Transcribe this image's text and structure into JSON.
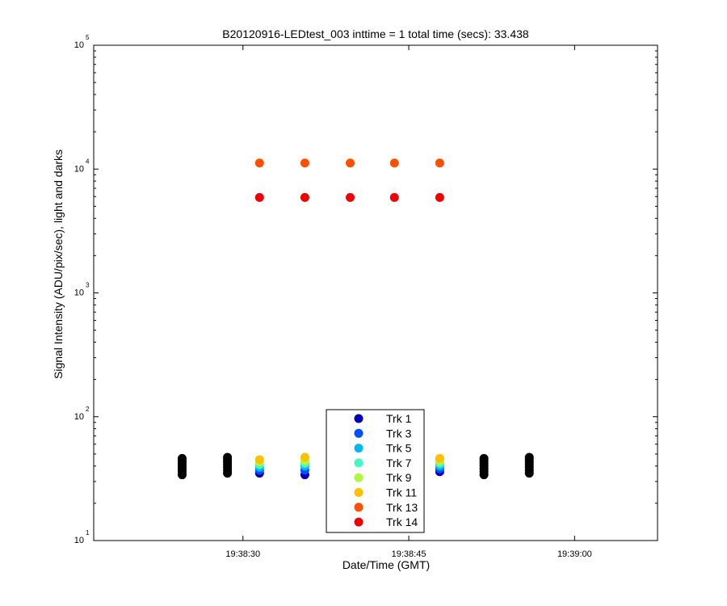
{
  "chart_data": {
    "type": "scatter",
    "title": "B20120916-LEDtest_003 inttime = 1 total time (secs): 33.438",
    "xlabel": "Date/Time (GMT)",
    "ylabel": "Signal Intensity (ADU/pix/sec), light and darks",
    "yscale": "log",
    "ylim": [
      10,
      100000
    ],
    "xlim": [
      "19:38:16.5",
      "19:39:07.5"
    ],
    "x_ticks": [
      "19:38:30",
      "19:38:45",
      "19:39:00"
    ],
    "y_ticks": [
      {
        "value": 10,
        "base": "10",
        "exp": "1"
      },
      {
        "value": 100,
        "base": "10",
        "exp": "2"
      },
      {
        "value": 1000,
        "base": "10",
        "exp": "3"
      },
      {
        "value": 10000,
        "base": "10",
        "exp": "4"
      },
      {
        "value": 100000,
        "base": "10",
        "exp": "5"
      }
    ],
    "grid": false,
    "legend_position": "bottom-center",
    "series": [
      {
        "name": "Trk 1",
        "color": "#0000b8",
        "points": [
          [
            "19:38:31.5",
            35
          ],
          [
            "19:38:35.6",
            34
          ],
          [
            "19:38:47.8",
            36
          ]
        ]
      },
      {
        "name": "Trk 3",
        "color": "#0050ff",
        "points": [
          [
            "19:38:31.5",
            37
          ],
          [
            "19:38:35.6",
            37
          ],
          [
            "19:38:47.8",
            38
          ]
        ]
      },
      {
        "name": "Trk 5",
        "color": "#00b8f0",
        "points": [
          [
            "19:38:31.5",
            39
          ],
          [
            "19:38:35.6",
            40
          ],
          [
            "19:38:47.8",
            40
          ]
        ]
      },
      {
        "name": "Trk 7",
        "color": "#40f8c0",
        "points": [
          [
            "19:38:31.5",
            41
          ],
          [
            "19:38:35.6",
            42
          ],
          [
            "19:38:47.8",
            42
          ]
        ]
      },
      {
        "name": "Trk 9",
        "color": "#b0f840",
        "points": [
          [
            "19:38:31.5",
            43
          ],
          [
            "19:38:35.6",
            44
          ],
          [
            "19:38:47.8",
            44
          ]
        ]
      },
      {
        "name": "Trk 11",
        "color": "#ffc000",
        "points": [
          [
            "19:38:31.5",
            45
          ],
          [
            "19:38:35.6",
            47
          ],
          [
            "19:38:47.8",
            46
          ]
        ]
      },
      {
        "name": "Trk 13",
        "color": "#ff5000",
        "points": [
          [
            "19:38:31.5",
            11200
          ],
          [
            "19:38:35.6",
            11200
          ],
          [
            "19:38:39.7",
            11200
          ],
          [
            "19:38:43.7",
            11200
          ],
          [
            "19:38:47.8",
            11200
          ]
        ]
      },
      {
        "name": "Trk 14",
        "color": "#f00000",
        "points": [
          [
            "19:38:31.5",
            5900
          ],
          [
            "19:38:35.6",
            5900
          ],
          [
            "19:38:39.7",
            5900
          ],
          [
            "19:38:43.7",
            5900
          ],
          [
            "19:38:47.8",
            5900
          ]
        ]
      }
    ],
    "darks": {
      "color": "#000000",
      "x": [
        "19:38:24.5",
        "19:38:28.6",
        "19:38:51.8",
        "19:38:55.9"
      ],
      "values": [
        [
          34,
          36,
          38,
          40,
          42,
          44,
          46
        ],
        [
          35,
          37,
          39,
          41,
          43,
          45,
          47
        ],
        [
          34,
          36,
          38,
          40,
          42,
          44,
          46
        ],
        [
          35,
          37,
          39,
          41,
          43,
          45,
          47
        ]
      ]
    }
  }
}
